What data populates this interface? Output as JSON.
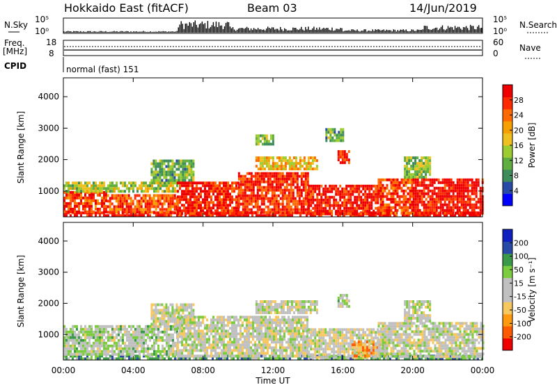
{
  "header": {
    "left": "Hokkaido East (fitACF)",
    "center": "Beam 03",
    "right": "14/Jun/2019"
  },
  "top_panels": {
    "nsky_label": "N.Sky",
    "nsky_ticks": [
      "10^5",
      "10^0"
    ],
    "nsearch_label": "N.Search",
    "nsearch_ticks": [
      "10^5",
      "10^0"
    ],
    "freq_label_1": "Freq.",
    "freq_label_2": "[MHz]",
    "freq_ticks": [
      "18",
      "8"
    ],
    "nave_label": "Nave",
    "nave_ticks": [
      "60",
      "0"
    ],
    "cpid_label": "CPID",
    "cpid_text": "normal (fast) 151"
  },
  "chart_data": [
    {
      "type": "heatmap",
      "title": "",
      "quantity": "Power",
      "ylabel": "Slant Range [km]",
      "xlabel": "Time UT",
      "x_ticks": [
        "00:00",
        "04:00",
        "08:00",
        "12:00",
        "16:00",
        "20:00",
        "00:00"
      ],
      "y_ticks": [
        1000,
        2000,
        3000,
        4000
      ],
      "ylim": [
        180,
        4600
      ],
      "colorbar": {
        "label": "Power [dB]",
        "ticks": [
          "28",
          "24",
          "20",
          "16",
          "12",
          "8",
          "4"
        ],
        "colors": [
          "#0000ff",
          "#2a4aa8",
          "#3d8c5a",
          "#5fae3f",
          "#9ccc30",
          "#f0c020",
          "#f5a000",
          "#ff6a00",
          "#ff2a00",
          "#ee0000"
        ]
      },
      "regions": [
        {
          "t": [
            0.0,
            24.0
          ],
          "r": [
            200,
            350
          ],
          "v": 0.95
        },
        {
          "t": [
            0.0,
            2.5
          ],
          "r": [
            350,
            1000
          ],
          "v": 0.85
        },
        {
          "t": [
            0.0,
            6.5
          ],
          "r": [
            1000,
            1300
          ],
          "v": 0.45
        },
        {
          "t": [
            2.5,
            6.5
          ],
          "r": [
            300,
            900
          ],
          "v": 0.8
        },
        {
          "t": [
            5.0,
            7.5
          ],
          "r": [
            1300,
            2000
          ],
          "v": 0.35
        },
        {
          "t": [
            6.5,
            10.0
          ],
          "r": [
            300,
            1300
          ],
          "v": 0.9
        },
        {
          "t": [
            10.0,
            14.0
          ],
          "r": [
            300,
            1600
          ],
          "v": 0.88
        },
        {
          "t": [
            11.0,
            14.5
          ],
          "r": [
            1700,
            2100
          ],
          "v": 0.6
        },
        {
          "t": [
            11.0,
            12.0
          ],
          "r": [
            2500,
            2800
          ],
          "v": 0.4
        },
        {
          "t": [
            14.0,
            18.0
          ],
          "r": [
            300,
            1200
          ],
          "v": 0.92
        },
        {
          "t": [
            15.7,
            16.4
          ],
          "r": [
            1900,
            2300
          ],
          "v": 0.9
        },
        {
          "t": [
            15.0,
            16.0
          ],
          "r": [
            2600,
            3000
          ],
          "v": 0.35
        },
        {
          "t": [
            18.0,
            20.0
          ],
          "r": [
            300,
            1400
          ],
          "v": 0.85
        },
        {
          "t": [
            19.5,
            21.0
          ],
          "r": [
            1400,
            2100
          ],
          "v": 0.4
        },
        {
          "t": [
            20.0,
            24.0
          ],
          "r": [
            300,
            1400
          ],
          "v": 0.95
        }
      ]
    },
    {
      "type": "heatmap",
      "title": "",
      "quantity": "Velocity",
      "ylabel": "Slant Range [km]",
      "xlabel": "Time UT",
      "x_ticks": [
        "00:00",
        "04:00",
        "08:00",
        "12:00",
        "16:00",
        "20:00",
        "00:00"
      ],
      "y_ticks": [
        1000,
        2000,
        3000,
        4000
      ],
      "ylim": [
        180,
        4600
      ],
      "colorbar": {
        "label": "Velocity [m s^-1]",
        "ticks": [
          "200",
          "100",
          "50",
          "15",
          "-15",
          "-50",
          "-100",
          "-200"
        ],
        "colors": [
          "#ee0000",
          "#ff5a00",
          "#ff9a10",
          "#f8c860",
          "#c0c0c0",
          "#c0c0c0",
          "#7ccc40",
          "#3a9a4a",
          "#2a4aa8",
          "#1020c0"
        ]
      },
      "regions": [
        {
          "t": [
            0.0,
            24.0
          ],
          "r": [
            200,
            350
          ],
          "v": 0.72
        },
        {
          "t": [
            0.0,
            6.5
          ],
          "r": [
            350,
            1300
          ],
          "v": 0.55
        },
        {
          "t": [
            5.0,
            7.5
          ],
          "r": [
            1300,
            2000
          ],
          "v": 0.5
        },
        {
          "t": [
            6.5,
            14.0
          ],
          "r": [
            300,
            1600
          ],
          "v": 0.5
        },
        {
          "t": [
            11.0,
            14.5
          ],
          "r": [
            1700,
            2100
          ],
          "v": 0.5
        },
        {
          "t": [
            14.0,
            18.0
          ],
          "r": [
            300,
            1200
          ],
          "v": 0.48
        },
        {
          "t": [
            16.5,
            18.5
          ],
          "r": [
            350,
            800
          ],
          "v": 0.28
        },
        {
          "t": [
            15.7,
            16.4
          ],
          "r": [
            1900,
            2300
          ],
          "v": 0.55
        },
        {
          "t": [
            18.0,
            24.0
          ],
          "r": [
            300,
            1400
          ],
          "v": 0.5
        },
        {
          "t": [
            19.5,
            21.0
          ],
          "r": [
            1400,
            2100
          ],
          "v": 0.5
        }
      ]
    }
  ]
}
